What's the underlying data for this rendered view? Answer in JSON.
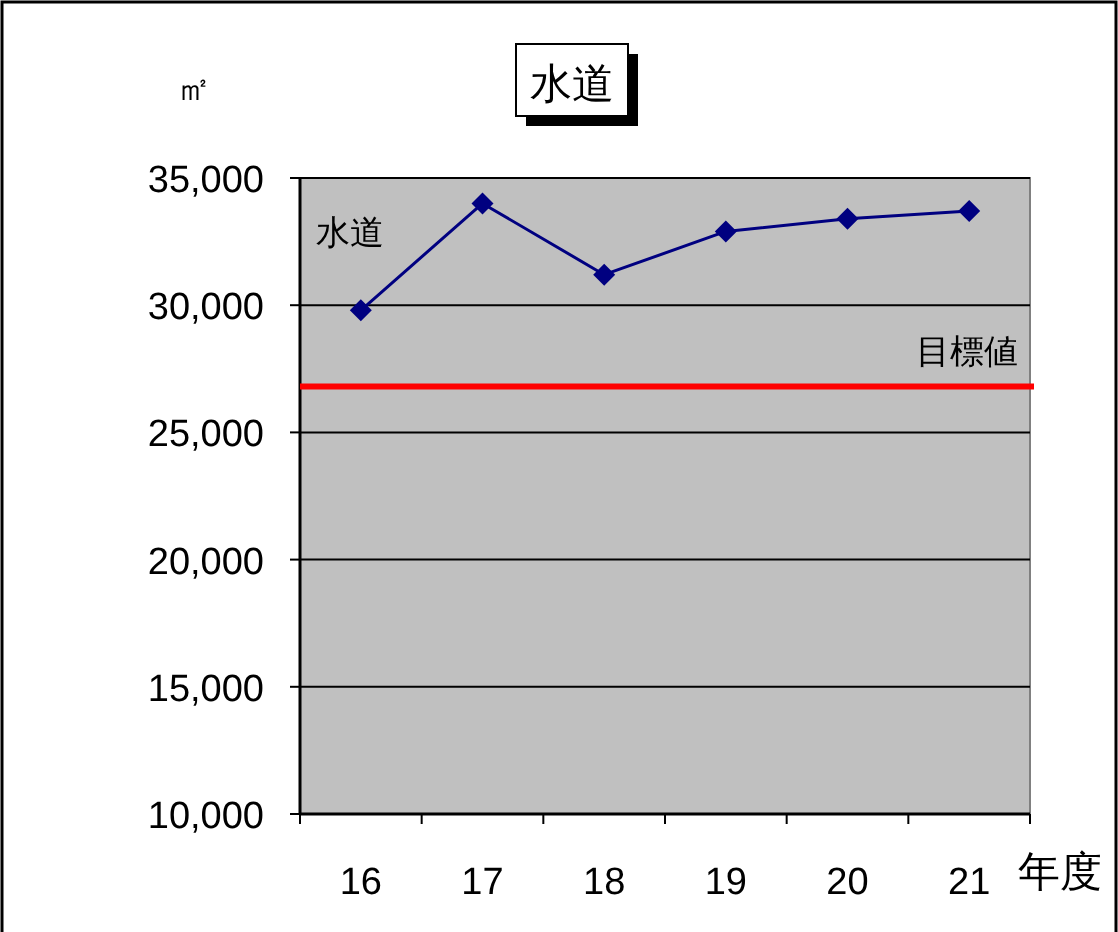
{
  "chart_data": {
    "type": "line",
    "title": "水道",
    "ylabel": "㎡",
    "xlabel": "年度",
    "categories": [
      "16",
      "17",
      "18",
      "19",
      "20",
      "21"
    ],
    "series": [
      {
        "name": "水道",
        "color": "#000080",
        "values": [
          29800,
          34000,
          31200,
          32900,
          33400,
          33700
        ]
      }
    ],
    "ylim": [
      10000,
      35000
    ],
    "yticks": [
      {
        "value": 10000,
        "label": "10,000"
      },
      {
        "value": 15000,
        "label": "15,000"
      },
      {
        "value": 20000,
        "label": "20,000"
      },
      {
        "value": 25000,
        "label": "25,000"
      },
      {
        "value": 30000,
        "label": "30,000"
      },
      {
        "value": 35000,
        "label": "35,000"
      }
    ],
    "ref_lines": [
      {
        "axis": "y",
        "value": 26800,
        "label": "目標値",
        "color": "#ff0000"
      }
    ],
    "grid": "y",
    "marker": "diamond",
    "line_style": "solid"
  }
}
